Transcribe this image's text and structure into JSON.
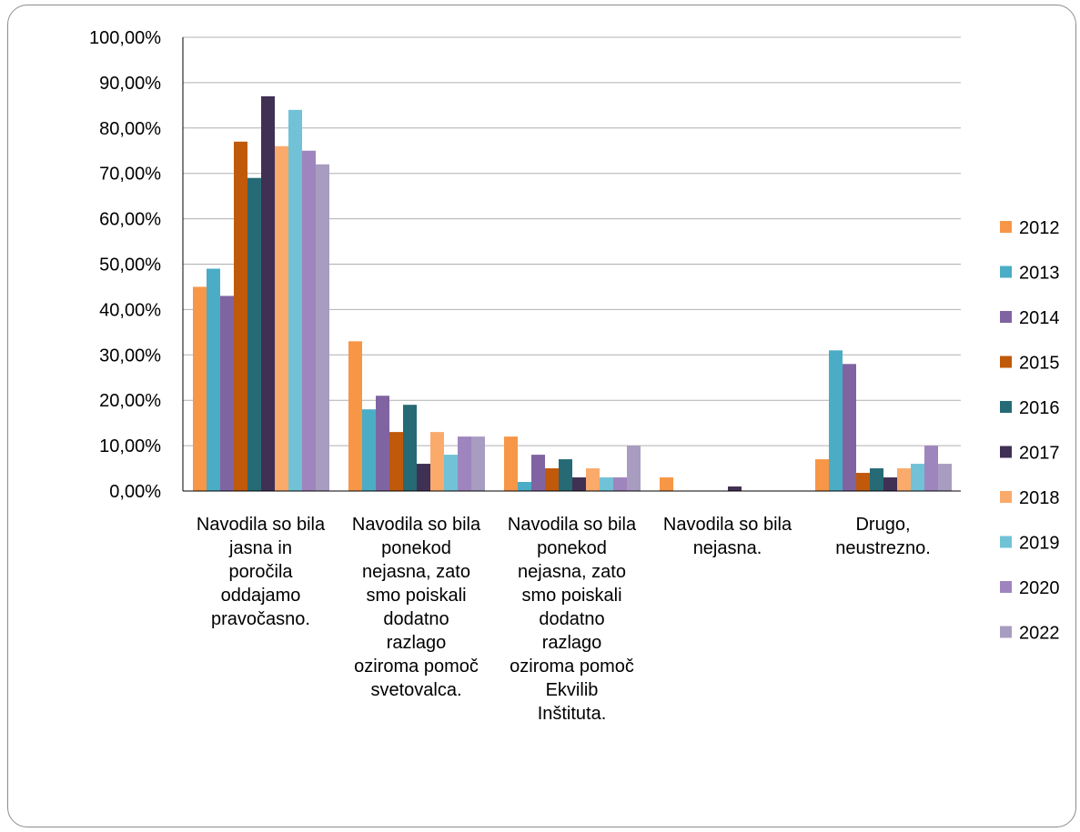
{
  "chart_data": {
    "type": "bar",
    "title": "",
    "xlabel": "",
    "ylabel": "",
    "ylim": [
      0,
      100
    ],
    "y_ticks": [
      "0,00%",
      "10,00%",
      "20,00%",
      "30,00%",
      "40,00%",
      "50,00%",
      "60,00%",
      "70,00%",
      "80,00%",
      "90,00%",
      "100,00%"
    ],
    "grid": true,
    "legend_position": "right",
    "categories": [
      [
        "Navodila so bila",
        "jasna in",
        "poročila",
        "oddajamo",
        "pravočasno."
      ],
      [
        "Navodila so bila",
        "ponekod",
        "nejasna, zato",
        "smo poiskali",
        "dodatno",
        "razlago",
        "oziroma pomoč",
        "svetovalca."
      ],
      [
        "Navodila so bila",
        "ponekod",
        "nejasna, zato",
        "smo poiskali",
        "dodatno",
        "razlago",
        "oziroma pomoč",
        "Ekvilib",
        "Inštituta."
      ],
      [
        "Navodila so bila",
        "nejasna."
      ],
      [
        "Drugo,",
        "neustrezno."
      ]
    ],
    "series": [
      {
        "name": "2012",
        "color": "#F79646",
        "values": [
          45,
          33,
          12,
          3,
          7
        ]
      },
      {
        "name": "2013",
        "color": "#4BACC6",
        "values": [
          49,
          18,
          2,
          0,
          31
        ]
      },
      {
        "name": "2014",
        "color": "#8064A2",
        "values": [
          43,
          21,
          8,
          0,
          28
        ]
      },
      {
        "name": "2015",
        "color": "#C0590A",
        "values": [
          77,
          13,
          5,
          0,
          4
        ]
      },
      {
        "name": "2016",
        "color": "#266A75",
        "values": [
          69,
          19,
          7,
          0,
          5
        ]
      },
      {
        "name": "2017",
        "color": "#403053",
        "values": [
          87,
          6,
          3,
          1,
          3
        ]
      },
      {
        "name": "2018",
        "color": "#FAAA6B",
        "values": [
          76,
          13,
          5,
          0,
          5
        ]
      },
      {
        "name": "2019",
        "color": "#71C2D6",
        "values": [
          84,
          8,
          3,
          0,
          6
        ]
      },
      {
        "name": "2020",
        "color": "#9F85BE",
        "values": [
          75,
          12,
          3,
          0,
          10
        ]
      },
      {
        "name": "2022",
        "color": "#A89CC0",
        "values": [
          72,
          12,
          10,
          0,
          6
        ]
      }
    ]
  }
}
